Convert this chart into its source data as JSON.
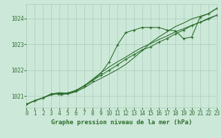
{
  "background_color": "#cce8d8",
  "grid_color": "#aaccbb",
  "line_color": "#2d6e2d",
  "title": "Graphe pression niveau de la mer (hPa)",
  "title_color": "#2d6e2d",
  "xlim": [
    0,
    23
  ],
  "ylim": [
    1020.55,
    1024.55
  ],
  "yticks": [
    1021,
    1022,
    1023,
    1024
  ],
  "xtick_labels": [
    "0",
    "1",
    "2",
    "3",
    "4",
    "5",
    "6",
    "7",
    "8",
    "9",
    "10",
    "11",
    "12",
    "13",
    "14",
    "15",
    "16",
    "17",
    "18",
    "19",
    "20",
    "21",
    "22",
    "23"
  ],
  "series": {
    "line1_y": [
      1020.68,
      1020.82,
      1020.93,
      1021.05,
      1021.1,
      1021.07,
      1021.17,
      1021.32,
      1021.52,
      1021.68,
      1021.85,
      1022.02,
      1022.22,
      1022.48,
      1022.75,
      1023.05,
      1023.28,
      1023.48,
      1023.68,
      1023.82,
      1023.98,
      1024.08,
      1024.18,
      1024.38
    ],
    "line2_y": [
      1020.68,
      1020.82,
      1020.93,
      1021.08,
      1021.13,
      1021.1,
      1021.22,
      1021.4,
      1021.65,
      1021.9,
      1022.12,
      1022.32,
      1022.5,
      1022.7,
      1022.88,
      1023.02,
      1023.18,
      1023.32,
      1023.48,
      1023.6,
      1023.73,
      1023.85,
      1023.97,
      1024.12
    ],
    "line3_x": [
      0,
      1,
      2,
      3,
      3.8,
      4.2,
      5,
      6,
      7,
      8,
      9,
      10,
      11,
      12,
      13,
      14,
      15,
      16,
      17,
      18,
      19,
      20,
      21,
      22,
      23
    ],
    "line3_y": [
      1020.68,
      1020.82,
      1020.93,
      1021.05,
      1021.08,
      1021.05,
      1021.1,
      1021.2,
      1021.38,
      1021.6,
      1021.88,
      1022.32,
      1022.97,
      1023.45,
      1023.55,
      1023.65,
      1023.65,
      1023.65,
      1023.55,
      1023.52,
      1023.22,
      1023.28,
      1024.05,
      1024.18,
      1024.38
    ],
    "line4_x": [
      0,
      1,
      2,
      3,
      4,
      5,
      6,
      7,
      8,
      9,
      10,
      11,
      12,
      13,
      14,
      15,
      16,
      17,
      18,
      19,
      20,
      21,
      22,
      23
    ],
    "line4_y": [
      1020.68,
      1020.82,
      1020.93,
      1021.08,
      1021.08,
      1021.12,
      1021.22,
      1021.4,
      1021.6,
      1021.8,
      1022.0,
      1022.2,
      1022.42,
      1022.6,
      1022.78,
      1022.9,
      1023.08,
      1023.22,
      1023.4,
      1023.55,
      1023.72,
      1023.85,
      1024.0,
      1024.12
    ]
  },
  "marker_size": 3,
  "line_width": 0.8,
  "tick_fontsize": 5.5,
  "title_fontsize": 6.5
}
